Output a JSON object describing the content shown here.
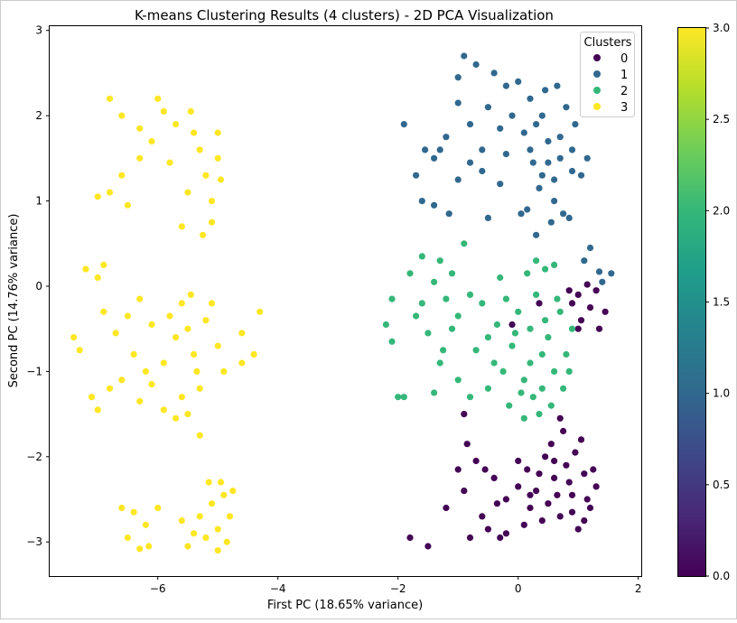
{
  "chart_data": {
    "type": "scatter",
    "title": "K-means Clustering Results (4 clusters) - 2D PCA Visualization",
    "xlabel": "First PC (18.65% variance)",
    "ylabel": "Second PC (14.76% variance)",
    "xlim": [
      -7.8,
      2.05
    ],
    "ylim": [
      -3.4,
      3.05
    ],
    "xticks": [
      -6,
      -4,
      -2,
      0,
      2
    ],
    "xtick_labels": [
      "−6",
      "−4",
      "−2",
      "0",
      "2"
    ],
    "yticks": [
      -3,
      -2,
      -1,
      0,
      1,
      2,
      3
    ],
    "ytick_labels": [
      "−3",
      "−2",
      "−1",
      "0",
      "1",
      "2",
      "3"
    ],
    "grid": false,
    "legend": {
      "title": "Clusters",
      "placement": "top-right",
      "entries": [
        {
          "label": "0",
          "color": "#440154"
        },
        {
          "label": "1",
          "color": "#31688e"
        },
        {
          "label": "2",
          "color": "#35b779"
        },
        {
          "label": "3",
          "color": "#fde725"
        }
      ]
    },
    "colorbar": {
      "colormap": "viridis",
      "range": [
        0.0,
        3.0
      ],
      "ticks": [
        0.0,
        0.5,
        1.0,
        1.5,
        2.0,
        2.5,
        3.0
      ],
      "tick_labels": [
        "0.0",
        "0.5",
        "1.0",
        "1.5",
        "2.0",
        "2.5",
        "3.0"
      ]
    },
    "series": [
      {
        "name": "0",
        "color": "#440154",
        "points": [
          [
            0.9,
            -2.45
          ],
          [
            0.7,
            -2.7
          ],
          [
            1.1,
            -2.2
          ],
          [
            0.5,
            -2.55
          ],
          [
            1.2,
            -2.6
          ],
          [
            0.8,
            -2.1
          ],
          [
            0.3,
            -2.4
          ],
          [
            1.0,
            -2.85
          ],
          [
            0.6,
            -2.25
          ],
          [
            1.3,
            -2.35
          ],
          [
            0.4,
            -2.75
          ],
          [
            0.95,
            -1.95
          ],
          [
            0.75,
            -1.7
          ],
          [
            0.55,
            -1.85
          ],
          [
            1.05,
            -1.8
          ],
          [
            0.2,
            -2.6
          ],
          [
            0.0,
            -2.35
          ],
          [
            -0.2,
            -2.5
          ],
          [
            -0.4,
            -2.25
          ],
          [
            -0.6,
            -2.7
          ],
          [
            -0.8,
            -2.95
          ],
          [
            -0.9,
            -2.4
          ],
          [
            -1.0,
            -2.15
          ],
          [
            -0.7,
            -2.05
          ],
          [
            -0.5,
            -2.85
          ],
          [
            -0.3,
            -2.95
          ],
          [
            -1.2,
            -2.6
          ],
          [
            -1.5,
            -3.05
          ],
          [
            -1.8,
            -2.95
          ],
          [
            0.1,
            -2.8
          ],
          [
            0.85,
            -2.3
          ],
          [
            1.15,
            -2.5
          ],
          [
            0.65,
            -2.45
          ],
          [
            0.35,
            -2.2
          ],
          [
            1.25,
            -2.15
          ],
          [
            0.45,
            -2.0
          ],
          [
            0.9,
            -2.65
          ],
          [
            -0.2,
            -2.9
          ],
          [
            -0.55,
            -2.15
          ],
          [
            0.15,
            -2.15
          ],
          [
            1.0,
            -0.1
          ],
          [
            1.2,
            -0.25
          ],
          [
            1.05,
            -0.4
          ],
          [
            1.3,
            -0.05
          ],
          [
            1.45,
            -0.3
          ],
          [
            0.9,
            -0.2
          ],
          [
            1.15,
            0.02
          ],
          [
            1.35,
            -0.5
          ],
          [
            1.0,
            -0.5
          ],
          [
            0.85,
            -0.05
          ],
          [
            0.35,
            -0.2
          ],
          [
            -0.1,
            -0.45
          ],
          [
            -0.9,
            -1.5
          ],
          [
            -0.85,
            -1.85
          ],
          [
            0.2,
            -2.45
          ],
          [
            0.6,
            -2.05
          ],
          [
            0.0,
            -2.05
          ],
          [
            -0.35,
            -2.55
          ],
          [
            1.1,
            -2.75
          ],
          [
            0.7,
            -1.55
          ]
        ]
      },
      {
        "name": "1",
        "color": "#31688e",
        "points": [
          [
            0.5,
            1.7
          ],
          [
            0.3,
            1.9
          ],
          [
            0.7,
            1.5
          ],
          [
            0.8,
            2.1
          ],
          [
            0.4,
            1.3
          ],
          [
            0.6,
            1.0
          ],
          [
            0.2,
            2.2
          ],
          [
            0.9,
            1.6
          ],
          [
            0.35,
            1.15
          ],
          [
            0.75,
            0.85
          ],
          [
            0.1,
            1.8
          ],
          [
            -0.1,
            2.0
          ],
          [
            -0.3,
            1.85
          ],
          [
            -0.5,
            2.1
          ],
          [
            -0.2,
            2.35
          ],
          [
            -0.4,
            2.5
          ],
          [
            0.0,
            2.4
          ],
          [
            0.45,
            2.3
          ],
          [
            0.65,
            2.35
          ],
          [
            0.95,
            1.9
          ],
          [
            1.05,
            1.3
          ],
          [
            0.85,
            0.8
          ],
          [
            0.55,
            0.75
          ],
          [
            1.15,
            1.5
          ],
          [
            0.25,
            1.45
          ],
          [
            -0.6,
            1.6
          ],
          [
            -0.8,
            1.9
          ],
          [
            -1.0,
            2.15
          ],
          [
            -1.2,
            1.75
          ],
          [
            -1.4,
            1.5
          ],
          [
            -1.55,
            1.6
          ],
          [
            -1.7,
            1.3
          ],
          [
            -1.9,
            1.9
          ],
          [
            -1.4,
            0.95
          ],
          [
            -1.0,
            1.25
          ],
          [
            -0.8,
            1.45
          ],
          [
            -1.15,
            0.85
          ],
          [
            -0.7,
            2.6
          ],
          [
            -1.0,
            2.45
          ],
          [
            -0.9,
            2.7
          ],
          [
            0.15,
            0.9
          ],
          [
            0.3,
            0.6
          ],
          [
            -0.3,
            1.2
          ],
          [
            -0.6,
            1.35
          ],
          [
            -0.2,
            1.55
          ],
          [
            0.6,
            1.25
          ],
          [
            1.2,
            0.45
          ],
          [
            1.55,
            0.15
          ],
          [
            1.4,
            0.05
          ],
          [
            1.1,
            0.3
          ],
          [
            1.35,
            0.17
          ],
          [
            -0.5,
            0.8
          ],
          [
            -1.6,
            1.0
          ],
          [
            -1.3,
            1.6
          ],
          [
            0.05,
            0.85
          ],
          [
            0.4,
            2.0
          ],
          [
            0.7,
            1.75
          ],
          [
            0.2,
            1.6
          ],
          [
            0.5,
            1.45
          ],
          [
            0.9,
            1.35
          ]
        ]
      },
      {
        "name": "2",
        "color": "#35b779",
        "points": [
          [
            0.2,
            -0.5
          ],
          [
            0.0,
            -0.3
          ],
          [
            0.4,
            -0.8
          ],
          [
            0.1,
            -1.1
          ],
          [
            0.3,
            -0.1
          ],
          [
            0.5,
            -0.6
          ],
          [
            0.6,
            -1.0
          ],
          [
            -0.1,
            -0.7
          ],
          [
            0.25,
            -1.3
          ],
          [
            0.7,
            -0.3
          ],
          [
            0.15,
            0.15
          ],
          [
            0.45,
            0.2
          ],
          [
            -0.2,
            -0.15
          ],
          [
            -0.35,
            -0.45
          ],
          [
            -0.5,
            -0.6
          ],
          [
            -0.4,
            -0.9
          ],
          [
            -0.6,
            -0.2
          ],
          [
            -0.8,
            -0.1
          ],
          [
            -1.0,
            -0.35
          ],
          [
            -0.7,
            -0.75
          ],
          [
            -1.2,
            -0.15
          ],
          [
            -1.4,
            0.05
          ],
          [
            -1.6,
            -0.2
          ],
          [
            -1.8,
            0.15
          ],
          [
            -1.6,
            0.35
          ],
          [
            -1.3,
            0.3
          ],
          [
            -1.1,
            0.15
          ],
          [
            -0.9,
            0.5
          ],
          [
            -1.5,
            -0.55
          ],
          [
            -1.3,
            -0.9
          ],
          [
            -1.0,
            -1.1
          ],
          [
            -0.8,
            -1.3
          ],
          [
            -1.4,
            -1.25
          ],
          [
            -1.9,
            -1.3
          ],
          [
            -2.0,
            -1.3
          ],
          [
            -2.1,
            -0.65
          ],
          [
            -2.2,
            -0.45
          ],
          [
            -2.1,
            -0.15
          ],
          [
            -1.7,
            -0.35
          ],
          [
            -0.3,
            0.1
          ],
          [
            0.55,
            -1.4
          ],
          [
            0.35,
            -1.5
          ],
          [
            0.75,
            -1.2
          ],
          [
            0.8,
            -0.8
          ],
          [
            0.6,
            0.25
          ],
          [
            0.3,
            0.3
          ],
          [
            0.05,
            -1.25
          ],
          [
            -0.25,
            -1.0
          ],
          [
            -0.15,
            -1.4
          ],
          [
            0.9,
            -0.5
          ],
          [
            0.1,
            -1.55
          ],
          [
            0.65,
            -0.15
          ],
          [
            -0.5,
            -1.2
          ],
          [
            -1.1,
            -0.5
          ],
          [
            -1.25,
            -0.75
          ],
          [
            0.4,
            -1.2
          ],
          [
            0.85,
            -1.0
          ],
          [
            0.2,
            -0.9
          ],
          [
            0.45,
            -0.4
          ],
          [
            -0.05,
            -0.55
          ]
        ]
      },
      {
        "name": "3",
        "color": "#fde725",
        "points": [
          [
            -5.5,
            -0.5
          ],
          [
            -5.4,
            -0.8
          ],
          [
            -5.6,
            -0.2
          ],
          [
            -5.3,
            -1.2
          ],
          [
            -5.5,
            -1.5
          ],
          [
            -5.7,
            -0.6
          ],
          [
            -5.2,
            -0.4
          ],
          [
            -5.35,
            -1.0
          ],
          [
            -5.6,
            -1.3
          ],
          [
            -5.45,
            -0.1
          ],
          [
            -5.8,
            -0.35
          ],
          [
            -5.9,
            -0.9
          ],
          [
            -6.1,
            -0.45
          ],
          [
            -6.3,
            -0.15
          ],
          [
            -6.5,
            -0.35
          ],
          [
            -6.7,
            -0.55
          ],
          [
            -6.9,
            -0.3
          ],
          [
            -7.0,
            0.1
          ],
          [
            -7.2,
            0.2
          ],
          [
            -6.9,
            0.25
          ],
          [
            -7.3,
            -0.75
          ],
          [
            -7.4,
            -0.6
          ],
          [
            -7.1,
            -1.3
          ],
          [
            -7.0,
            -1.45
          ],
          [
            -6.8,
            -1.2
          ],
          [
            -6.6,
            -1.1
          ],
          [
            -6.3,
            -1.35
          ],
          [
            -6.1,
            -1.15
          ],
          [
            -5.9,
            -1.45
          ],
          [
            -5.7,
            -1.55
          ],
          [
            -5.0,
            -0.7
          ],
          [
            -4.9,
            -1.0
          ],
          [
            -4.6,
            -0.55
          ],
          [
            -4.4,
            -0.8
          ],
          [
            -4.3,
            -0.3
          ],
          [
            -4.6,
            -0.9
          ],
          [
            -5.1,
            -0.2
          ],
          [
            -5.3,
            -1.75
          ],
          [
            -6.4,
            -0.8
          ],
          [
            -6.2,
            -1.0
          ],
          [
            -5.3,
            1.6
          ],
          [
            -5.2,
            1.3
          ],
          [
            -5.4,
            1.8
          ],
          [
            -5.1,
            1.0
          ],
          [
            -5.0,
            1.5
          ],
          [
            -5.5,
            1.1
          ],
          [
            -5.7,
            1.9
          ],
          [
            -5.9,
            2.05
          ],
          [
            -6.1,
            1.7
          ],
          [
            -5.8,
            1.45
          ],
          [
            -6.3,
            1.5
          ],
          [
            -6.6,
            1.3
          ],
          [
            -6.8,
            1.1
          ],
          [
            -7.0,
            1.05
          ],
          [
            -6.5,
            0.95
          ],
          [
            -5.6,
            0.7
          ],
          [
            -5.25,
            0.6
          ],
          [
            -5.0,
            1.8
          ],
          [
            -4.95,
            1.25
          ],
          [
            -6.6,
            2.0
          ],
          [
            -6.8,
            2.2
          ],
          [
            -6.0,
            2.2
          ],
          [
            -6.3,
            1.85
          ],
          [
            -5.45,
            2.05
          ],
          [
            -5.1,
            0.75
          ],
          [
            -5.3,
            -2.7
          ],
          [
            -5.1,
            -2.55
          ],
          [
            -4.9,
            -2.45
          ],
          [
            -4.8,
            -2.7
          ],
          [
            -5.0,
            -2.85
          ],
          [
            -5.2,
            -2.95
          ],
          [
            -4.85,
            -3.0
          ],
          [
            -5.0,
            -3.1
          ],
          [
            -5.4,
            -2.9
          ],
          [
            -5.6,
            -2.75
          ],
          [
            -5.5,
            -3.05
          ],
          [
            -6.0,
            -2.6
          ],
          [
            -6.2,
            -2.8
          ],
          [
            -6.4,
            -2.65
          ],
          [
            -6.5,
            -2.95
          ],
          [
            -6.6,
            -2.6
          ],
          [
            -6.3,
            -3.08
          ],
          [
            -6.15,
            -3.05
          ],
          [
            -4.75,
            -2.4
          ],
          [
            -5.15,
            -2.3
          ],
          [
            -4.95,
            -2.3
          ]
        ]
      }
    ]
  }
}
